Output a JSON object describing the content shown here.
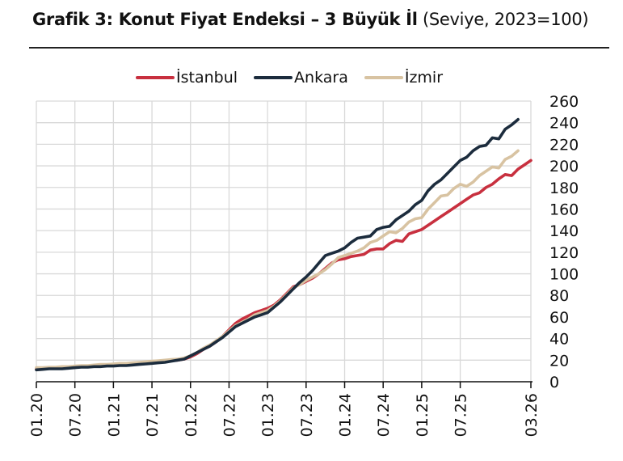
{
  "title": {
    "bold": "Grafik 3: Konut Fiyat Endeksi – 3 Büyük İl",
    "sub": " (Seviye, 2023=100)"
  },
  "legend": [
    {
      "name": "İstanbul",
      "color": "#c8303f"
    },
    {
      "name": "Ankara",
      "color": "#1c2c3d"
    },
    {
      "name": "İzmir",
      "color": "#d8c3a2"
    }
  ],
  "chart_data": {
    "type": "line",
    "title": "Grafik 3: Konut Fiyat Endeksi – 3 Büyük İl (Seviye, 2023=100)",
    "xlabel": "",
    "ylabel": "",
    "ylim": [
      0,
      260
    ],
    "yticks": [
      0,
      20,
      40,
      60,
      80,
      100,
      120,
      140,
      160,
      180,
      200,
      220,
      240,
      260
    ],
    "xtick_labels": [
      "01.20",
      "07.20",
      "01.21",
      "07.21",
      "01.22",
      "07.22",
      "01.23",
      "07.23",
      "01.24",
      "07.24",
      "01.25",
      "07.25",
      "03.26"
    ],
    "grid": true,
    "legend_position": "top",
    "x_start": "01.20",
    "x_end": "03.26",
    "frequency": "monthly",
    "series": [
      {
        "name": "İstanbul",
        "color": "#c8303f",
        "values": [
          12,
          12.5,
          13,
          13,
          13,
          13.5,
          14,
          14.5,
          14.5,
          15,
          15,
          15.5,
          16,
          16,
          16.5,
          16.5,
          17,
          17.5,
          18,
          18.5,
          19,
          19.5,
          20,
          21,
          23,
          26,
          30,
          33,
          37,
          42,
          48,
          54,
          58,
          61,
          64,
          66,
          68,
          71,
          76,
          82,
          88,
          90,
          93,
          96,
          100,
          105,
          110,
          113,
          114,
          116,
          117,
          118,
          122,
          123,
          123,
          128,
          131,
          130,
          137,
          139,
          141,
          145,
          149,
          153,
          157,
          161,
          165,
          169,
          173,
          175,
          180,
          183,
          188,
          192,
          191,
          197,
          201,
          205
        ]
      },
      {
        "name": "Ankara",
        "color": "#1c2c3d",
        "values": [
          11,
          11.5,
          12,
          12,
          12,
          12.5,
          13,
          13.5,
          13.5,
          14,
          14,
          14.5,
          14.5,
          15,
          15,
          15.5,
          16,
          16.5,
          17,
          17.5,
          18,
          19,
          20,
          21,
          24,
          27,
          30,
          33,
          37,
          41,
          46,
          51,
          54,
          57,
          60,
          62,
          64,
          69,
          74,
          80,
          86,
          92,
          97,
          103,
          110,
          117,
          119,
          121,
          124,
          129,
          133,
          134,
          135,
          141,
          143,
          144,
          150,
          154,
          158,
          164,
          168,
          177,
          183,
          187,
          193,
          199,
          205,
          208,
          214,
          218,
          219,
          226,
          225,
          234,
          238,
          243
        ]
      },
      {
        "name": "İzmir",
        "color": "#d8c3a2",
        "values": [
          13,
          13,
          13.5,
          13.5,
          14,
          14,
          14.5,
          15,
          15,
          15.5,
          16,
          16,
          16.5,
          17,
          17,
          17.5,
          18,
          18.5,
          19,
          19.5,
          20,
          20.5,
          21,
          22,
          24,
          27,
          31,
          34,
          38,
          42,
          47,
          52,
          55,
          58,
          62,
          64,
          66,
          70,
          75,
          81,
          87,
          90,
          94,
          97,
          100,
          104,
          109,
          115,
          117,
          119,
          121,
          124,
          129,
          131,
          135,
          139,
          138,
          142,
          148,
          151,
          152,
          160,
          166,
          172,
          173,
          179,
          183,
          181,
          185,
          191,
          195,
          199,
          198,
          206,
          209,
          214
        ]
      }
    ]
  }
}
